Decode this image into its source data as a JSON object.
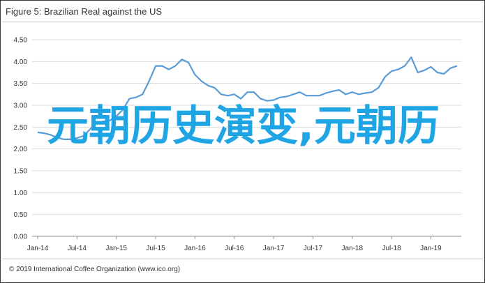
{
  "figure": {
    "label": "Figure 5:",
    "title": "Brazilian Real against the US"
  },
  "footer": "© 2019 International Coffee Organization (www.ico.org)",
  "overlay_text": "元朝历史演变,元朝历",
  "colors": {
    "line": "#5a9bd5",
    "grid": "#d9d9d9",
    "axis": "#8c8c8c",
    "overlay": "#1fa4e4"
  },
  "chart_data": {
    "type": "line",
    "title": "Brazilian Real against the US",
    "xlabel": "",
    "ylabel": "",
    "ylim": [
      0.0,
      4.5
    ],
    "yticks": [
      "0.00",
      "0.50",
      "1.00",
      "1.50",
      "2.00",
      "2.50",
      "3.00",
      "3.50",
      "4.00",
      "4.50"
    ],
    "xticks": [
      "Jan-14",
      "Jul-14",
      "Jan-15",
      "Jul-15",
      "Jan-16",
      "Jul-16",
      "Jan-17",
      "Jul-17",
      "Jan-18",
      "Jul-18",
      "Jan-19"
    ],
    "grid": true,
    "legend": "none",
    "series": [
      {
        "values": [
          2.38,
          2.36,
          2.32,
          2.26,
          2.22,
          2.22,
          2.25,
          2.3,
          2.45,
          2.6,
          2.63,
          2.65,
          2.75,
          2.9,
          3.15,
          3.18,
          3.25,
          3.55,
          3.9,
          3.9,
          3.82,
          3.9,
          4.05,
          3.98,
          3.7,
          3.55,
          3.45,
          3.4,
          3.25,
          3.22,
          3.25,
          3.15,
          3.3,
          3.3,
          3.15,
          3.1,
          3.12,
          3.18,
          3.2,
          3.25,
          3.3,
          3.22,
          3.22,
          3.22,
          3.28,
          3.32,
          3.35,
          3.25,
          3.3,
          3.25,
          3.28,
          3.3,
          3.4,
          3.65,
          3.78,
          3.82,
          3.9,
          4.1,
          3.75,
          3.8,
          3.88,
          3.75,
          3.72,
          3.85,
          3.9
        ]
      }
    ]
  }
}
